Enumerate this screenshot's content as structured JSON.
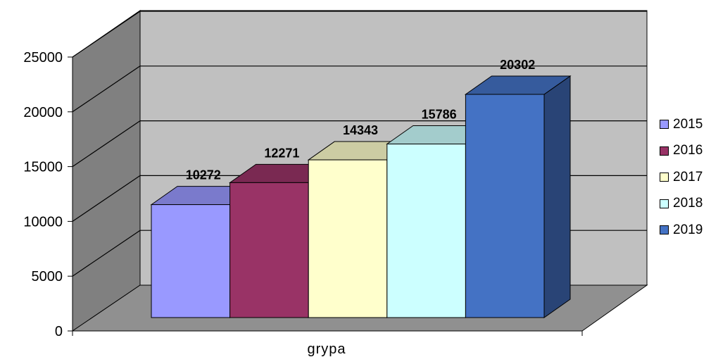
{
  "chart_data": {
    "type": "bar",
    "categories": [
      "grypa"
    ],
    "series": [
      {
        "name": "2015",
        "values": [
          10272
        ],
        "color": "#9999ff"
      },
      {
        "name": "2016",
        "values": [
          12271
        ],
        "color": "#993366"
      },
      {
        "name": "2017",
        "values": [
          14343
        ],
        "color": "#ffffcc"
      },
      {
        "name": "2018",
        "values": [
          15786
        ],
        "color": "#ccffff"
      },
      {
        "name": "2019",
        "values": [
          20302
        ],
        "color": "#4472c4"
      }
    ],
    "data_labels": [
      "10272",
      "12271",
      "14343",
      "15786",
      "20302"
    ],
    "yticks": [
      "0",
      "5000",
      "10000",
      "15000",
      "20000",
      "25000"
    ],
    "ylim": [
      0,
      25000
    ],
    "xlabel": "",
    "ylabel": "",
    "style": "3d-column",
    "grid": true,
    "legend": "right"
  }
}
